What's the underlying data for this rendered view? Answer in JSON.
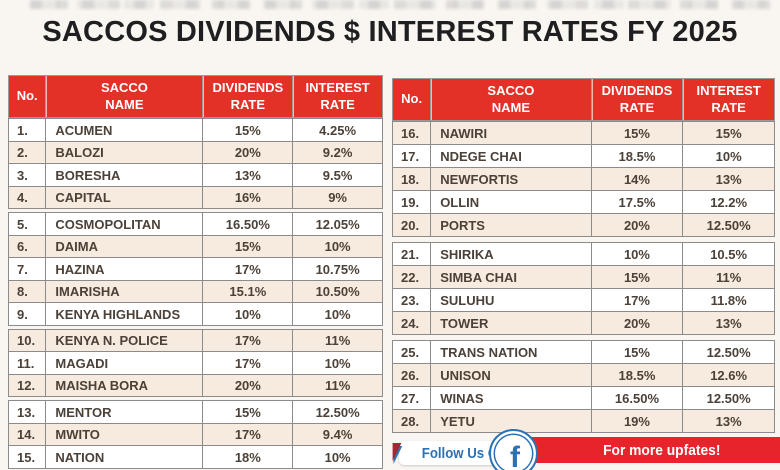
{
  "page": {
    "title": "SACCOS DIVIDENDS $ INTEREST RATES FY 2025"
  },
  "table_headers": {
    "no": "No.",
    "name": "SACCO\nNAME",
    "dividends": "DIVIDENDS\nRATE",
    "interest": "INTEREST\nRATE"
  },
  "left_table": {
    "blocks": [
      {
        "rows": [
          {
            "no": "1.",
            "name": "ACUMEN",
            "dividends": "15%",
            "interest": "4.25%"
          },
          {
            "no": "2.",
            "name": "BALOZI",
            "dividends": "20%",
            "interest": "9.2%"
          },
          {
            "no": "3.",
            "name": "BORESHA",
            "dividends": "13%",
            "interest": "9.5%"
          },
          {
            "no": "4.",
            "name": "CAPITAL",
            "dividends": "16%",
            "interest": "9%"
          }
        ]
      },
      {
        "rows": [
          {
            "no": "5.",
            "name": "COSMOPOLITAN",
            "dividends": "16.50%",
            "interest": "12.05%"
          },
          {
            "no": "6.",
            "name": "DAIMA",
            "dividends": "15%",
            "interest": "10%"
          },
          {
            "no": "7.",
            "name": "HAZINA",
            "dividends": "17%",
            "interest": "10.75%"
          },
          {
            "no": "8.",
            "name": "IMARISHA",
            "dividends": "15.1%",
            "interest": "10.50%"
          },
          {
            "no": "9.",
            "name": "KENYA HIGHLANDS",
            "dividends": "10%",
            "interest": "10%"
          }
        ]
      },
      {
        "rows": [
          {
            "no": "10.",
            "name": "KENYA N. POLICE",
            "dividends": "17%",
            "interest": "11%"
          },
          {
            "no": "11.",
            "name": "MAGADI",
            "dividends": "17%",
            "interest": "10%"
          },
          {
            "no": "12.",
            "name": "MAISHA BORA",
            "dividends": "20%",
            "interest": "11%"
          }
        ]
      },
      {
        "rows": [
          {
            "no": "13.",
            "name": "MENTOR",
            "dividends": "15%",
            "interest": "12.50%"
          },
          {
            "no": "14.",
            "name": "MWITO",
            "dividends": "17%",
            "interest": "9.4%"
          },
          {
            "no": "15.",
            "name": "NATION",
            "dividends": "18%",
            "interest": "10%"
          }
        ]
      }
    ]
  },
  "right_table": {
    "blocks": [
      {
        "rows": [
          {
            "no": "16.",
            "name": "NAWIRI",
            "dividends": "15%",
            "interest": "15%"
          },
          {
            "no": "17.",
            "name": "NDEGE CHAI",
            "dividends": "18.5%",
            "interest": "10%"
          },
          {
            "no": "18.",
            "name": "NEWFORTIS",
            "dividends": "14%",
            "interest": "13%"
          },
          {
            "no": "19.",
            "name": "OLLIN",
            "dividends": "17.5%",
            "interest": "12.2%"
          },
          {
            "no": "20.",
            "name": "PORTS",
            "dividends": "20%",
            "interest": "12.50%"
          }
        ]
      },
      {
        "rows": [
          {
            "no": "21.",
            "name": "SHIRIKA",
            "dividends": "10%",
            "interest": "10.5%"
          },
          {
            "no": "22.",
            "name": "SIMBA CHAI",
            "dividends": "15%",
            "interest": "11%"
          },
          {
            "no": "23.",
            "name": "SULUHU",
            "dividends": "17%",
            "interest": "11.8%"
          },
          {
            "no": "24.",
            "name": "TOWER",
            "dividends": "20%",
            "interest": "13%"
          }
        ]
      },
      {
        "rows": [
          {
            "no": "25.",
            "name": "TRANS NATION",
            "dividends": "15%",
            "interest": "12.50%"
          },
          {
            "no": "26.",
            "name": "UNISON",
            "dividends": "18.5%",
            "interest": "12.6%"
          },
          {
            "no": "27.",
            "name": "WINAS",
            "dividends": "16.50%",
            "interest": "12.50%"
          },
          {
            "no": "28.",
            "name": "YETU",
            "dividends": "19%",
            "interest": "13%"
          }
        ]
      }
    ]
  },
  "footer": {
    "follow_label": "Follow Us On",
    "facebook_glyph": "f",
    "facebook_icon": "facebook-f",
    "more_label": "For more upfates!"
  },
  "colors": {
    "header_red": "#e33128",
    "banner_red": "#e7242b",
    "row_cream": "#f7ebdf",
    "row_white": "#ffffff",
    "cell_text": "#4c4138",
    "border_gray": "#8b8b8b",
    "facebook_blue": "#2a72b5",
    "title_color": "#1f1f22",
    "page_bg": "#f9f6f1"
  }
}
